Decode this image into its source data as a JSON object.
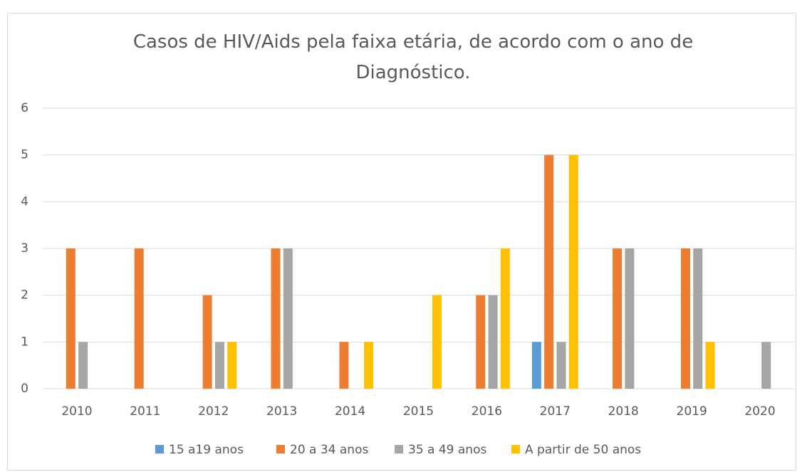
{
  "chart_data": {
    "type": "bar",
    "title": "Casos de HIV/Aids pela faixa etária, de acordo com o ano de Diagnóstico.",
    "categories": [
      "2010",
      "2011",
      "2012",
      "2013",
      "2014",
      "2015",
      "2016",
      "2017",
      "2018",
      "2019",
      "2020"
    ],
    "series": [
      {
        "name": "15 a19 anos",
        "color": "#5b9bd5",
        "values": [
          0,
          0,
          0,
          0,
          0,
          0,
          0,
          1,
          0,
          0,
          0
        ]
      },
      {
        "name": "20 a 34 anos",
        "color": "#ed7d31",
        "values": [
          3,
          3,
          2,
          3,
          1,
          0,
          2,
          5,
          3,
          3,
          0
        ]
      },
      {
        "name": "35 a 49 anos",
        "color": "#a5a5a5",
        "values": [
          1,
          0,
          1,
          3,
          0,
          0,
          2,
          1,
          3,
          3,
          1
        ]
      },
      {
        "name": "A partir de 50 anos",
        "color": "#ffc000",
        "values": [
          0,
          0,
          1,
          0,
          1,
          2,
          3,
          5,
          0,
          1,
          0
        ]
      }
    ],
    "ylim": [
      0,
      6
    ],
    "yticks": [
      0,
      1,
      2,
      3,
      4,
      5,
      6
    ],
    "grid": true,
    "legend": "bottom"
  }
}
